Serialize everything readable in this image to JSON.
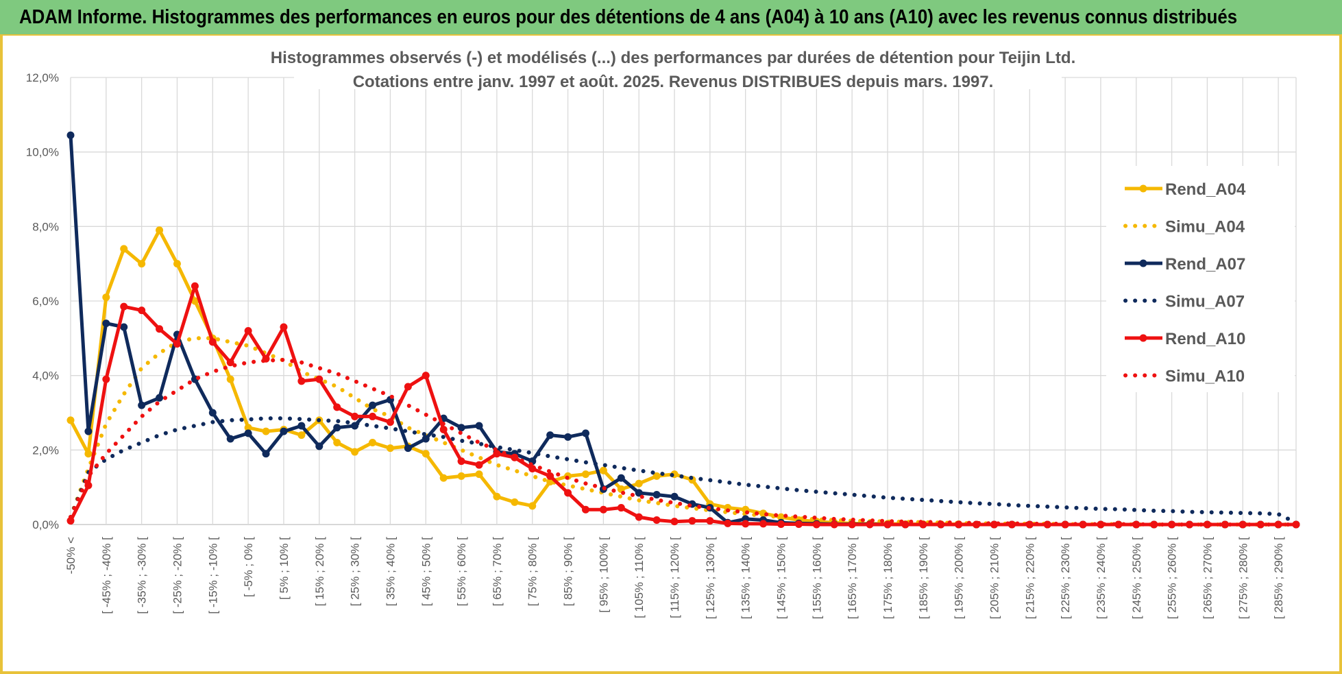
{
  "banner": {
    "title": "ADAM Informe. Histogrammes des performances en euros pour des détentions de 4 ans (A04) à 10 ans (A10) avec les revenus connus distribués"
  },
  "colors": {
    "banner_bg": "#7fc97f",
    "frame": "#e8c23a",
    "A04": "#f5b800",
    "A07": "#0f2a5c",
    "A10": "#ee1111"
  },
  "chart_data": {
    "type": "line",
    "title": "Histogrammes observés (-) et modélisés (...) des performances par durées de détention pour Teijin Ltd.",
    "subtitle": "Cotations entre janv. 1997 et août. 2025. Revenus DISTRIBUES depuis mars. 1997.",
    "xlabel": "",
    "ylabel": "",
    "ylim": [
      0,
      12
    ],
    "yticks": [
      "0,0%",
      "2,0%",
      "4,0%",
      "6,0%",
      "8,0%",
      "10,0%",
      "12,0%"
    ],
    "grid": true,
    "legend_position": "right",
    "x_labels": [
      "-50% <",
      "[ -45% ; -40% [",
      "[ -35% ; -30% [",
      "[ -25% ; -20% [",
      "[ -15% ; -10% [",
      "[ -5% ; 0% [",
      "[ 5% ; 10% [",
      "[ 15% ; 20% [",
      "[ 25% ; 30% [",
      "[ 35% ; 40% [",
      "[ 45% ; 50% [",
      "[ 55% ; 60% [",
      "[ 65% ; 70% [",
      "[ 75% ; 80% [",
      "[ 85% ; 90% [",
      "[ 95% ; 100% [",
      "[ 105% ; 110% [",
      "[ 115% ; 120% [",
      "[ 125% ; 130% [",
      "[ 135% ; 140% [",
      "[ 145% ; 150% [",
      "[ 155% ; 160% [",
      "[ 165% ; 170% [",
      "[ 175% ; 180% [",
      "[ 185% ; 190% [",
      "[ 195% ; 200% [",
      "[ 205% ; 210% [",
      "[ 215% ; 220% [",
      "[ 225% ; 230% [",
      "[ 235% ; 240% [",
      "[ 245% ; 250% [",
      "[ 255% ; 260% [",
      "[ 265% ; 270% [",
      "[ 275% ; 280% [",
      "[ 285% ; 290% ["
    ],
    "n_points": 70,
    "series": [
      {
        "name": "Rend_A04",
        "style": "solid",
        "color": "#f5b800",
        "values": [
          2.8,
          1.9,
          6.1,
          7.4,
          7.0,
          7.9,
          7.0,
          6.0,
          5.0,
          3.9,
          2.6,
          2.5,
          2.55,
          2.4,
          2.8,
          2.2,
          1.95,
          2.2,
          2.05,
          2.1,
          1.9,
          1.25,
          1.3,
          1.35,
          0.75,
          0.6,
          0.5,
          1.15,
          1.3,
          1.35,
          1.45,
          0.95,
          1.1,
          1.3,
          1.35,
          1.2,
          0.55,
          0.45,
          0.4,
          0.3,
          0.2,
          0.12,
          0.08,
          0.05,
          0.03,
          0.02,
          0.02,
          0.01,
          0.01,
          0.01,
          0.01,
          0,
          0,
          0,
          0,
          0,
          0,
          0,
          0,
          0,
          0,
          0,
          0,
          0,
          0,
          0,
          0,
          0,
          0,
          0
        ]
      },
      {
        "name": "Simu_A04",
        "style": "dotted",
        "color": "#f5b800",
        "values": [
          0.2,
          1.5,
          2.7,
          3.5,
          4.2,
          4.6,
          4.9,
          5.0,
          5.0,
          4.9,
          4.8,
          4.6,
          4.4,
          4.1,
          3.9,
          3.7,
          3.4,
          3.1,
          2.9,
          2.6,
          2.4,
          2.2,
          2.0,
          1.8,
          1.6,
          1.45,
          1.3,
          1.15,
          1.05,
          0.95,
          0.85,
          0.75,
          0.65,
          0.58,
          0.5,
          0.44,
          0.38,
          0.33,
          0.28,
          0.24,
          0.2,
          0.17,
          0.14,
          0.12,
          0.1,
          0.09,
          0.08,
          0.07,
          0.06,
          0.05,
          0.04,
          0.03,
          0.03,
          0.02,
          0.02,
          0.02,
          0.01,
          0.01,
          0.01,
          0.01,
          0,
          0,
          0,
          0,
          0,
          0,
          0,
          0,
          0,
          0
        ]
      },
      {
        "name": "Rend_A07",
        "style": "solid",
        "color": "#0f2a5c",
        "values": [
          10.45,
          2.5,
          5.4,
          5.3,
          3.2,
          3.4,
          5.1,
          3.9,
          3.0,
          2.3,
          2.45,
          1.9,
          2.5,
          2.65,
          2.1,
          2.6,
          2.65,
          3.2,
          3.35,
          2.05,
          2.3,
          2.85,
          2.6,
          2.65,
          1.95,
          1.9,
          1.7,
          2.4,
          2.35,
          2.45,
          0.95,
          1.25,
          0.85,
          0.8,
          0.75,
          0.55,
          0.45,
          0.05,
          0.15,
          0.12,
          0.05,
          0.03,
          0.02,
          0.01,
          0.01,
          0.01,
          0,
          0,
          0,
          0,
          0,
          0,
          0,
          0,
          0,
          0,
          0,
          0,
          0,
          0,
          0,
          0,
          0,
          0,
          0,
          0,
          0,
          0,
          0,
          0
        ]
      },
      {
        "name": "Simu_A07",
        "style": "dotted",
        "color": "#0f2a5c",
        "values": [
          0.2,
          1.4,
          1.75,
          2.0,
          2.2,
          2.4,
          2.55,
          2.65,
          2.75,
          2.8,
          2.82,
          2.85,
          2.85,
          2.83,
          2.8,
          2.78,
          2.72,
          2.65,
          2.58,
          2.5,
          2.42,
          2.35,
          2.25,
          2.17,
          2.08,
          2.0,
          1.92,
          1.83,
          1.75,
          1.67,
          1.6,
          1.52,
          1.45,
          1.38,
          1.32,
          1.25,
          1.19,
          1.13,
          1.07,
          1.02,
          0.97,
          0.92,
          0.88,
          0.84,
          0.8,
          0.76,
          0.72,
          0.69,
          0.66,
          0.63,
          0.6,
          0.57,
          0.55,
          0.52,
          0.5,
          0.48,
          0.46,
          0.44,
          0.42,
          0.41,
          0.39,
          0.37,
          0.36,
          0.34,
          0.33,
          0.32,
          0.31,
          0.3,
          0.28,
          0.05
        ]
      },
      {
        "name": "Rend_A10",
        "style": "solid",
        "color": "#ee1111",
        "values": [
          0.1,
          1.05,
          3.9,
          5.85,
          5.75,
          5.25,
          4.85,
          6.4,
          4.9,
          4.35,
          5.2,
          4.45,
          5.3,
          3.85,
          3.9,
          3.15,
          2.9,
          2.9,
          2.75,
          3.7,
          4.0,
          2.55,
          1.7,
          1.6,
          1.9,
          1.8,
          1.5,
          1.3,
          0.85,
          0.4,
          0.4,
          0.45,
          0.2,
          0.12,
          0.08,
          0.1,
          0.1,
          0.03,
          0.02,
          0.02,
          0.01,
          0.01,
          0,
          0,
          0,
          0,
          0,
          0,
          0,
          0,
          0,
          0,
          0,
          0,
          0,
          0,
          0,
          0,
          0,
          0,
          0,
          0,
          0,
          0,
          0,
          0,
          0,
          0,
          0,
          0
        ]
      },
      {
        "name": "Simu_A10",
        "style": "dotted",
        "color": "#ee1111",
        "values": [
          0.2,
          1.3,
          1.9,
          2.4,
          2.9,
          3.3,
          3.6,
          3.9,
          4.1,
          4.25,
          4.35,
          4.4,
          4.42,
          4.35,
          4.2,
          4.05,
          3.85,
          3.65,
          3.45,
          3.2,
          2.95,
          2.7,
          2.45,
          2.2,
          2.0,
          1.8,
          1.6,
          1.42,
          1.25,
          1.1,
          0.98,
          0.86,
          0.76,
          0.66,
          0.58,
          0.5,
          0.44,
          0.38,
          0.33,
          0.28,
          0.24,
          0.21,
          0.18,
          0.15,
          0.13,
          0.11,
          0.09,
          0.08,
          0.07,
          0.06,
          0.05,
          0.04,
          0.03,
          0.03,
          0.02,
          0.02,
          0.02,
          0.01,
          0.01,
          0.01,
          0.01,
          0,
          0,
          0,
          0,
          0,
          0,
          0,
          0,
          0
        ]
      }
    ]
  }
}
